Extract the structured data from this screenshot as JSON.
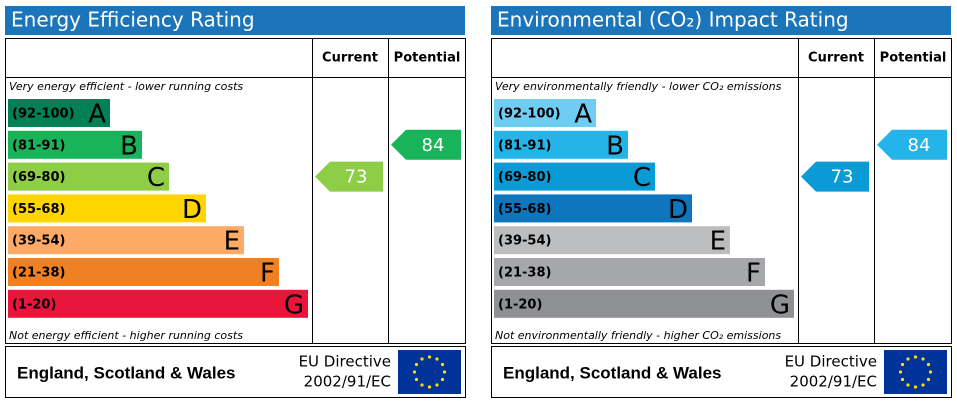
{
  "chart_data": [
    {
      "type": "epc",
      "title": "Energy Efficiency Rating",
      "column_headers": [
        "Current",
        "Potential"
      ],
      "top_note": "Very energy efficient - lower running costs",
      "bottom_note": "Not energy efficient - higher running costs",
      "bands": [
        {
          "range": "(92-100)",
          "letter": "A",
          "color": "#008054"
        },
        {
          "range": "(81-91)",
          "letter": "B",
          "color": "#19b459"
        },
        {
          "range": "(69-80)",
          "letter": "C",
          "color": "#8dce46"
        },
        {
          "range": "(55-68)",
          "letter": "D",
          "color": "#ffd500"
        },
        {
          "range": "(39-54)",
          "letter": "E",
          "color": "#fcaa65"
        },
        {
          "range": "(21-38)",
          "letter": "F",
          "color": "#ef8023"
        },
        {
          "range": "(1-20)",
          "letter": "G",
          "color": "#e9153b"
        }
      ],
      "current": 73,
      "potential": 84,
      "footer": {
        "region": "England, Scotland & Wales",
        "directive": [
          "EU Directive",
          "2002/91/EC"
        ]
      }
    },
    {
      "type": "epc",
      "title": "Environmental (CO₂) Impact Rating",
      "column_headers": [
        "Current",
        "Potential"
      ],
      "top_note": "Very environmentally friendly - lower CO₂ emissions",
      "bottom_note": "Not environmentally friendly - higher CO₂ emissions",
      "bands": [
        {
          "range": "(92-100)",
          "letter": "A",
          "color": "#6fcdf4"
        },
        {
          "range": "(81-91)",
          "letter": "B",
          "color": "#25b4e9"
        },
        {
          "range": "(69-80)",
          "letter": "C",
          "color": "#0a9bd6"
        },
        {
          "range": "(55-68)",
          "letter": "D",
          "color": "#0f76bd"
        },
        {
          "range": "(39-54)",
          "letter": "E",
          "color": "#bbbdbf"
        },
        {
          "range": "(21-38)",
          "letter": "F",
          "color": "#a5a7aa"
        },
        {
          "range": "(1-20)",
          "letter": "G",
          "color": "#8e9093"
        }
      ],
      "current": 73,
      "potential": 84,
      "footer": {
        "region": "England, Scotland & Wales",
        "directive": [
          "EU Directive",
          "2002/91/EC"
        ]
      }
    }
  ]
}
